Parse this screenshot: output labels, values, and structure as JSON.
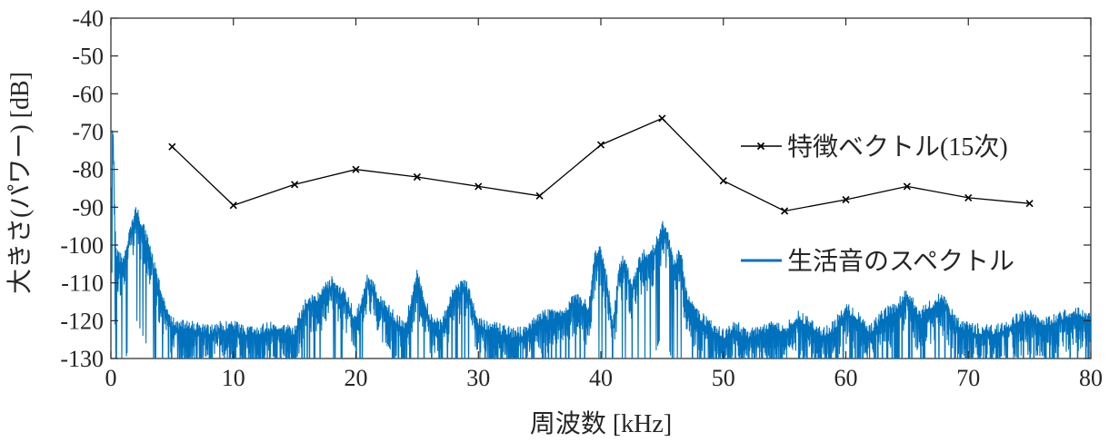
{
  "chart_data": {
    "type": "line",
    "xlabel": "周波数 [kHz]",
    "ylabel": "大きさ(パワー) [dB]",
    "xlim": [
      0,
      80
    ],
    "ylim": [
      -130,
      -40
    ],
    "xticks": [
      0,
      10,
      20,
      30,
      40,
      50,
      60,
      70,
      80
    ],
    "yticks": [
      -40,
      -50,
      -60,
      -70,
      -80,
      -90,
      -100,
      -110,
      -120,
      -130
    ],
    "grid": false,
    "legend_position": "right",
    "series": [
      {
        "name": "特徴ベクトル(15次)",
        "color": "#000000",
        "marker": "x",
        "x": [
          5,
          10,
          15,
          20,
          25,
          30,
          35,
          40,
          45,
          50,
          55,
          60,
          65,
          70,
          75
        ],
        "y": [
          -74,
          -89.5,
          -84,
          -80,
          -82,
          -84.5,
          -87,
          -73.5,
          -66.5,
          -83,
          -91,
          -88,
          -84.5,
          -87.5,
          -89
        ]
      },
      {
        "name": "生活音のスペクトル",
        "color": "#0072BD",
        "style": "dense-noisy",
        "x": [
          0,
          0.15,
          0.4,
          1,
          2,
          3,
          4,
          5,
          6,
          7,
          8,
          9,
          10,
          11,
          12,
          13,
          14,
          15,
          16,
          17,
          18,
          19,
          20,
          21,
          22,
          23,
          24,
          25,
          26,
          27,
          28,
          29,
          30,
          31,
          32,
          33,
          34,
          35,
          36,
          37,
          38,
          39,
          39.5,
          40,
          40.5,
          41,
          41.5,
          42,
          42.5,
          43,
          43.5,
          44,
          44.5,
          45,
          45.5,
          46,
          46.5,
          47,
          48,
          49,
          50,
          51,
          52,
          53,
          54,
          55,
          56,
          57,
          58,
          59,
          60,
          61,
          62,
          63,
          64,
          65,
          66,
          67,
          68,
          69,
          70,
          71,
          72,
          73,
          74,
          75,
          76,
          77,
          78,
          79,
          80
        ],
        "y": [
          -100,
          -63,
          -100,
          -103,
          -89,
          -97,
          -110,
          -119,
          -120,
          -120,
          -121,
          -120,
          -120,
          -121,
          -121,
          -120,
          -121,
          -121,
          -113,
          -112,
          -108,
          -111,
          -118,
          -107,
          -113,
          -117,
          -120,
          -106,
          -117,
          -120,
          -110,
          -109,
          -119,
          -120,
          -121,
          -122,
          -121,
          -117,
          -117,
          -116,
          -112,
          -115,
          -101,
          -100,
          -108,
          -119,
          -104,
          -102,
          -110,
          -104,
          -101,
          -102,
          -98,
          -93,
          -96,
          -104,
          -100,
          -112,
          -117,
          -120,
          -122,
          -120,
          -122,
          -121,
          -120,
          -121,
          -117,
          -119,
          -122,
          -120,
          -115,
          -117,
          -121,
          -117,
          -115,
          -111,
          -117,
          -114,
          -112,
          -119,
          -120,
          -121,
          -121,
          -120,
          -118,
          -117,
          -119,
          -118,
          -117,
          -116,
          -117
        ]
      }
    ]
  }
}
